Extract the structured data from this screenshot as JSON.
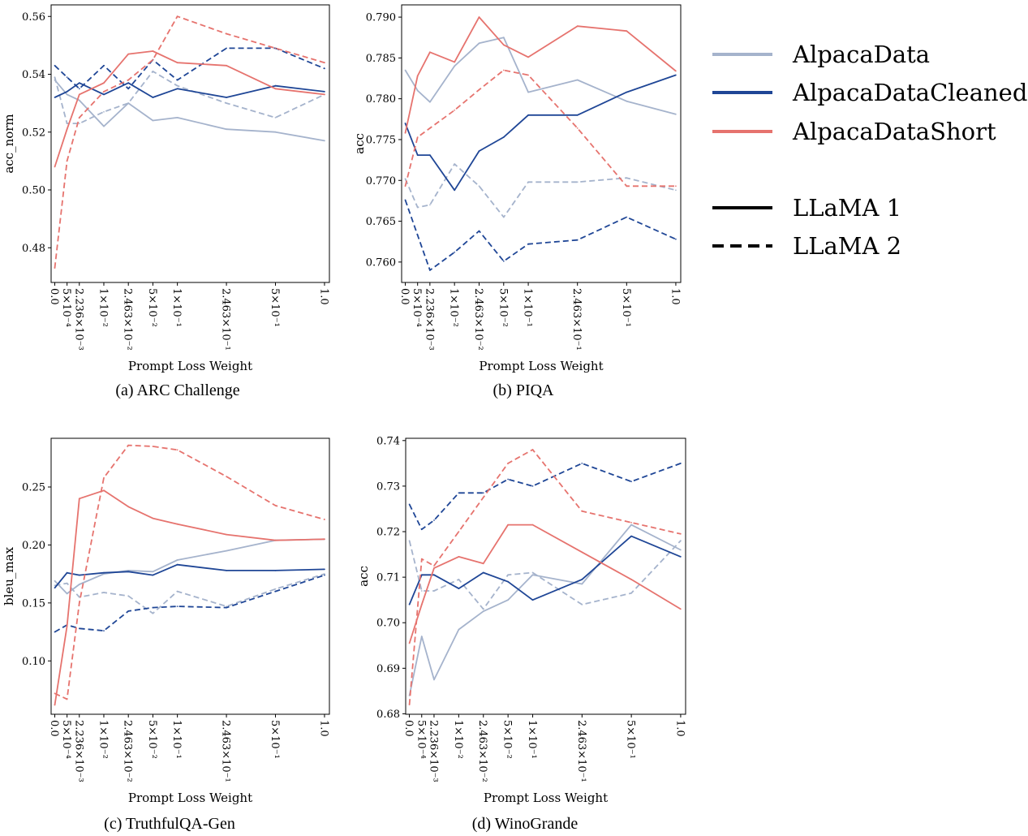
{
  "figure": {
    "xlabel": "Prompt Loss Weight",
    "x_positions": [
      0,
      0.5,
      1,
      2,
      3,
      4,
      5,
      7,
      9,
      11
    ],
    "x_tick_labels": [
      "0.0",
      "5×10⁻⁴",
      "2.236×10⁻³",
      "1×10⁻²",
      "2.463×10⁻²",
      "5×10⁻²",
      "1×10⁻¹",
      "2.463×10⁻¹",
      "5×10⁻¹",
      "1.0"
    ],
    "x_range": [
      -0.15,
      11.2
    ],
    "styles": {
      "AlpacaData": {
        "color": "#a5b3cc"
      },
      "AlpacaDataCleaned": {
        "color": "#1f4696"
      },
      "AlpacaDataShort": {
        "color": "#e6736e"
      }
    }
  },
  "legend": {
    "datasets": [
      {
        "label": "AlpacaData",
        "color": "#a5b3cc"
      },
      {
        "label": "AlpacaDataCleaned",
        "color": "#1f4696"
      },
      {
        "label": "AlpacaDataShort",
        "color": "#e6736e"
      }
    ],
    "models": [
      {
        "label": "LLaMA 1",
        "dash": "solid"
      },
      {
        "label": "LLaMA 2",
        "dash": "dashed"
      }
    ]
  },
  "chart_data": [
    {
      "type": "line",
      "caption": "(a) ARC Challenge",
      "ylabel": "acc_norm",
      "xlabel": "Prompt Loss Weight",
      "ylim": [
        0.468,
        0.564
      ],
      "yticks": [
        0.48,
        0.5,
        0.52,
        0.54,
        0.56
      ],
      "ytick_labels": [
        "0.48",
        "0.50",
        "0.52",
        "0.54",
        "0.56"
      ],
      "series": [
        {
          "name": "AlpacaData LLaMA 1",
          "dataset": "AlpacaData",
          "model": "LLaMA 1",
          "dashed": false,
          "values": [
            0.538,
            0.533,
            0.531,
            0.522,
            0.53,
            0.524,
            0.525,
            0.521,
            0.52,
            0.517
          ]
        },
        {
          "name": "AlpacaData LLaMA 2",
          "dataset": "AlpacaData",
          "model": "LLaMA 2",
          "dashed": true,
          "values": [
            0.539,
            0.523,
            0.523,
            0.527,
            0.53,
            0.541,
            0.536,
            0.53,
            0.525,
            0.533
          ]
        },
        {
          "name": "AlpacaDataCleaned LLaMA 1",
          "dataset": "AlpacaDataCleaned",
          "model": "LLaMA 1",
          "dashed": false,
          "values": [
            0.532,
            0.534,
            0.537,
            0.533,
            0.537,
            0.532,
            0.535,
            0.532,
            0.536,
            0.534
          ]
        },
        {
          "name": "AlpacaDataCleaned LLaMA 2",
          "dataset": "AlpacaDataCleaned",
          "model": "LLaMA 2",
          "dashed": true,
          "values": [
            0.543,
            0.539,
            0.535,
            0.543,
            0.535,
            0.545,
            0.538,
            0.549,
            0.549,
            0.542
          ]
        },
        {
          "name": "AlpacaDataShort LLaMA 1",
          "dataset": "AlpacaDataShort",
          "model": "LLaMA 1",
          "dashed": false,
          "values": [
            0.508,
            0.521,
            0.533,
            0.537,
            0.547,
            0.548,
            0.544,
            0.543,
            0.535,
            0.533
          ]
        },
        {
          "name": "AlpacaDataShort LLaMA 2",
          "dataset": "AlpacaDataShort",
          "model": "LLaMA 2",
          "dashed": true,
          "values": [
            0.473,
            0.51,
            0.525,
            0.534,
            0.538,
            0.545,
            0.56,
            0.554,
            0.549,
            0.544
          ]
        }
      ]
    },
    {
      "type": "line",
      "caption": "(b) PIQA",
      "ylabel": "acc",
      "xlabel": "Prompt Loss Weight",
      "ylim": [
        0.7575,
        0.7915
      ],
      "yticks": [
        0.76,
        0.765,
        0.77,
        0.775,
        0.78,
        0.785,
        0.79
      ],
      "ytick_labels": [
        "0.760",
        "0.765",
        "0.770",
        "0.775",
        "0.780",
        "0.785",
        "0.790"
      ],
      "series": [
        {
          "name": "AlpacaData LLaMA 1",
          "dataset": "AlpacaData",
          "model": "LLaMA 1",
          "dashed": false,
          "values": [
            0.7835,
            0.781,
            0.7796,
            0.784,
            0.7868,
            0.7875,
            0.7808,
            0.7823,
            0.7797,
            0.7781
          ]
        },
        {
          "name": "AlpacaData LLaMA 2",
          "dataset": "AlpacaData",
          "model": "LLaMA 2",
          "dashed": true,
          "values": [
            0.7702,
            0.7667,
            0.767,
            0.772,
            0.7693,
            0.7655,
            0.7698,
            0.7698,
            0.7703,
            0.7688
          ]
        },
        {
          "name": "AlpacaDataCleaned LLaMA 1",
          "dataset": "AlpacaDataCleaned",
          "model": "LLaMA 1",
          "dashed": false,
          "values": [
            0.777,
            0.7731,
            0.7731,
            0.7688,
            0.7736,
            0.7753,
            0.778,
            0.778,
            0.7808,
            0.7829
          ]
        },
        {
          "name": "AlpacaDataCleaned LLaMA 2",
          "dataset": "AlpacaDataCleaned",
          "model": "LLaMA 2",
          "dashed": true,
          "values": [
            0.7676,
            0.7633,
            0.759,
            0.7612,
            0.7638,
            0.7601,
            0.7622,
            0.7627,
            0.7655,
            0.7628
          ]
        },
        {
          "name": "AlpacaDataShort LLaMA 1",
          "dataset": "AlpacaDataShort",
          "model": "LLaMA 1",
          "dashed": false,
          "values": [
            0.7758,
            0.7828,
            0.7857,
            0.7845,
            0.79,
            0.7866,
            0.7851,
            0.7889,
            0.7883,
            0.7834
          ]
        },
        {
          "name": "AlpacaDataShort LLaMA 2",
          "dataset": "AlpacaDataShort",
          "model": "LLaMA 2",
          "dashed": true,
          "values": [
            0.7693,
            0.7753,
            0.7764,
            0.7786,
            0.7811,
            0.7835,
            0.7829,
            0.7764,
            0.7693,
            0.7693
          ]
        }
      ]
    },
    {
      "type": "line",
      "caption": "(c) TruthfulQA-Gen",
      "ylabel": "bleu_max",
      "xlabel": "Prompt Loss Weight",
      "ylim": [
        0.054,
        0.292
      ],
      "yticks": [
        0.1,
        0.15,
        0.2,
        0.25
      ],
      "ytick_labels": [
        "0.10",
        "0.15",
        "0.20",
        "0.25"
      ],
      "series": [
        {
          "name": "AlpacaData LLaMA 1",
          "dataset": "AlpacaData",
          "model": "LLaMA 1",
          "dashed": false,
          "values": [
            0.169,
            0.158,
            0.166,
            0.175,
            0.178,
            0.177,
            0.187,
            0.195,
            0.204,
            0.205
          ]
        },
        {
          "name": "AlpacaData LLaMA 2",
          "dataset": "AlpacaData",
          "model": "LLaMA 2",
          "dashed": true,
          "values": [
            0.165,
            0.167,
            0.155,
            0.159,
            0.156,
            0.141,
            0.16,
            0.147,
            0.162,
            0.175
          ]
        },
        {
          "name": "AlpacaDataCleaned LLaMA 1",
          "dataset": "AlpacaDataCleaned",
          "model": "LLaMA 1",
          "dashed": false,
          "values": [
            0.163,
            0.176,
            0.174,
            0.176,
            0.177,
            0.174,
            0.183,
            0.178,
            0.178,
            0.179
          ]
        },
        {
          "name": "AlpacaDataCleaned LLaMA 2",
          "dataset": "AlpacaDataCleaned",
          "model": "LLaMA 2",
          "dashed": true,
          "values": [
            0.125,
            0.131,
            0.128,
            0.126,
            0.143,
            0.146,
            0.147,
            0.146,
            0.16,
            0.174
          ]
        },
        {
          "name": "AlpacaDataShort LLaMA 1",
          "dataset": "AlpacaDataShort",
          "model": "LLaMA 1",
          "dashed": false,
          "values": [
            0.062,
            0.13,
            0.24,
            0.247,
            0.233,
            0.223,
            0.218,
            0.209,
            0.204,
            0.205
          ]
        },
        {
          "name": "AlpacaDataShort LLaMA 2",
          "dataset": "AlpacaDataShort",
          "model": "LLaMA 2",
          "dashed": true,
          "values": [
            0.072,
            0.067,
            0.15,
            0.258,
            0.286,
            0.285,
            0.282,
            0.259,
            0.234,
            0.222
          ]
        }
      ]
    },
    {
      "type": "line",
      "caption": "(d) WinoGrande",
      "ylabel": "acc",
      "xlabel": "Prompt Loss Weight",
      "ylim": [
        0.6799,
        0.7405
      ],
      "yticks": [
        0.68,
        0.69,
        0.7,
        0.71,
        0.72,
        0.73,
        0.74
      ],
      "ytick_labels": [
        "0.68",
        "0.69",
        "0.70",
        "0.71",
        "0.72",
        "0.73",
        "0.74"
      ],
      "series": [
        {
          "name": "AlpacaData LLaMA 1",
          "dataset": "AlpacaData",
          "model": "LLaMA 1",
          "dashed": false,
          "values": [
            0.684,
            0.697,
            0.6875,
            0.6985,
            0.7025,
            0.705,
            0.7105,
            0.7085,
            0.7215,
            0.716
          ]
        },
        {
          "name": "AlpacaData LLaMA 2",
          "dataset": "AlpacaData",
          "model": "LLaMA 2",
          "dashed": true,
          "values": [
            0.718,
            0.707,
            0.707,
            0.7095,
            0.703,
            0.7105,
            0.711,
            0.704,
            0.7065,
            0.718
          ]
        },
        {
          "name": "AlpacaDataCleaned LLaMA 1",
          "dataset": "AlpacaDataCleaned",
          "model": "LLaMA 1",
          "dashed": false,
          "values": [
            0.704,
            0.7105,
            0.7105,
            0.7075,
            0.711,
            0.709,
            0.705,
            0.7095,
            0.719,
            0.7145
          ]
        },
        {
          "name": "AlpacaDataCleaned LLaMA 2",
          "dataset": "AlpacaDataCleaned",
          "model": "LLaMA 2",
          "dashed": true,
          "values": [
            0.726,
            0.7205,
            0.7225,
            0.7285,
            0.7285,
            0.7315,
            0.73,
            0.735,
            0.731,
            0.735
          ]
        },
        {
          "name": "AlpacaDataShort LLaMA 1",
          "dataset": "AlpacaDataShort",
          "model": "LLaMA 1",
          "dashed": false,
          "values": [
            0.6955,
            0.704,
            0.712,
            0.7145,
            0.713,
            0.7215,
            0.7215,
            0.7155,
            0.7095,
            0.703
          ]
        },
        {
          "name": "AlpacaDataShort LLaMA 2",
          "dataset": "AlpacaDataShort",
          "model": "LLaMA 2",
          "dashed": true,
          "values": [
            0.682,
            0.714,
            0.7125,
            0.72,
            0.7275,
            0.735,
            0.738,
            0.7245,
            0.722,
            0.7195
          ]
        }
      ]
    }
  ]
}
